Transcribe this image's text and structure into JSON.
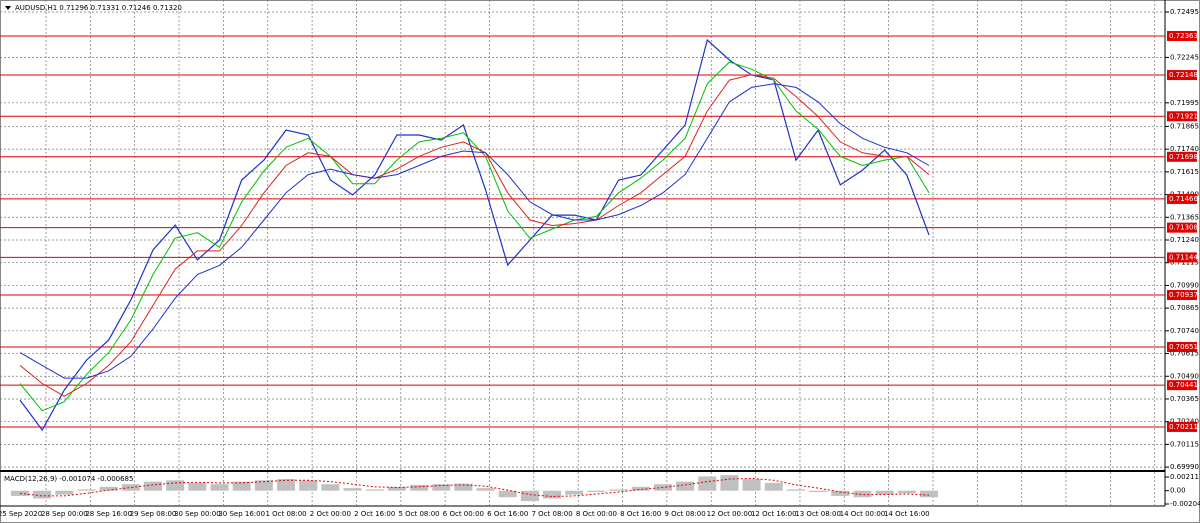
{
  "chart_data": [
    {
      "type": "line",
      "title": "AUDUSD,H1  0.71296 0.71331 0.71246 0.71320",
      "categories": [
        "25 Sep 2020",
        null,
        "28 Sep 00:00",
        null,
        "28 Sep 16:00",
        null,
        "29 Sep 08:00",
        null,
        "30 Sep 00:00",
        null,
        "30 Sep 16:00",
        null,
        "1 Oct 08:00",
        null,
        "2 Oct 00:00",
        null,
        "2 Oct 16:00",
        null,
        "5 Oct 08:00",
        null,
        "6 Oct 00:00",
        null,
        "6 Oct 16:00",
        null,
        "7 Oct 08:00",
        null,
        "8 Oct 00:00",
        null,
        "8 Oct 16:00",
        null,
        "9 Oct 08:00",
        null,
        "12 Oct 00:00",
        null,
        "12 Oct 16:00",
        null,
        "13 Oct 08:00",
        null,
        "14 Oct 00:00",
        null,
        "14 Oct 16:00",
        null
      ],
      "series": [
        {
          "color": "#1e32c8",
          "values": [
            0.70359,
            0.70194,
            0.70414,
            0.70579,
            0.70689,
            0.7091,
            0.71185,
            0.71322,
            0.7113,
            0.7124,
            0.7157,
            0.7168,
            0.71845,
            0.71818,
            0.7157,
            0.71488,
            0.71598,
            0.71818,
            0.71818,
            0.7179,
            0.71873,
            0.71515,
            0.71102,
            0.7124,
            0.71377,
            0.71377,
            0.7135,
            0.7157,
            0.71598,
            0.71735,
            0.71873,
            0.72341,
            0.72231,
            0.72148,
            0.72121,
            0.7168,
            0.71845,
            0.71543,
            0.71625,
            0.71735,
            0.71598,
            0.71267
          ]
        },
        {
          "color": "#00c000",
          "values": [
            0.7045,
            0.703,
            0.7035,
            0.705,
            0.7062,
            0.708,
            0.7105,
            0.7125,
            0.7128,
            0.712,
            0.7145,
            0.7162,
            0.7175,
            0.718,
            0.717,
            0.7155,
            0.7155,
            0.7168,
            0.7178,
            0.718,
            0.7183,
            0.717,
            0.714,
            0.7125,
            0.713,
            0.7135,
            0.7137,
            0.715,
            0.7158,
            0.7168,
            0.718,
            0.721,
            0.7222,
            0.7218,
            0.7212,
            0.7195,
            0.7185,
            0.717,
            0.7165,
            0.7168,
            0.717,
            0.715
          ]
        },
        {
          "color": "#e02020",
          "values": [
            0.7055,
            0.7045,
            0.7038,
            0.7045,
            0.7055,
            0.7068,
            0.7088,
            0.7108,
            0.7118,
            0.7118,
            0.7132,
            0.715,
            0.7165,
            0.7172,
            0.717,
            0.716,
            0.7158,
            0.7163,
            0.717,
            0.7175,
            0.7178,
            0.7172,
            0.715,
            0.7135,
            0.7132,
            0.7133,
            0.7135,
            0.7143,
            0.715,
            0.716,
            0.717,
            0.7195,
            0.7212,
            0.7215,
            0.7213,
            0.7203,
            0.7192,
            0.7178,
            0.7172,
            0.717,
            0.717,
            0.716
          ]
        },
        {
          "color": "#2030d0",
          "values": [
            0.7062,
            0.7055,
            0.7048,
            0.7048,
            0.7052,
            0.706,
            0.7075,
            0.7092,
            0.7105,
            0.711,
            0.712,
            0.7135,
            0.715,
            0.716,
            0.7163,
            0.716,
            0.7158,
            0.716,
            0.7165,
            0.717,
            0.7173,
            0.7172,
            0.716,
            0.7145,
            0.7138,
            0.7135,
            0.7135,
            0.7138,
            0.7143,
            0.715,
            0.716,
            0.718,
            0.72,
            0.7208,
            0.721,
            0.7208,
            0.72,
            0.7188,
            0.718,
            0.7175,
            0.7172,
            0.7165
          ]
        }
      ],
      "levels": [
        0.72363,
        0.72148,
        0.71921,
        0.71698,
        0.71466,
        0.71308,
        0.71144,
        0.70937,
        0.70651,
        0.70441,
        0.70211
      ],
      "levels_color": "#e00000",
      "ylim": [
        0.69974,
        0.72561
      ],
      "yticks": [
        0.72495,
        0.72245,
        0.71995,
        0.71865,
        {
          "value": 0.7174,
          "label": "0.71740"
        },
        0.71615,
        {
          "value": 0.7149,
          "label": "0.71490"
        },
        0.71365,
        {
          "value": 0.7124,
          "label": "0.71240"
        },
        0.71115,
        {
          "value": 0.7099,
          "label": "0.70990"
        },
        0.70865,
        {
          "value": 0.7074,
          "label": "0.70740"
        },
        0.70615,
        {
          "value": 0.7049,
          "label": "0.70490"
        },
        0.70365,
        {
          "value": 0.7024,
          "label": "0.70240"
        },
        0.70115,
        {
          "value": 0.6999,
          "label": "0.69990"
        }
      ],
      "grid": true
    },
    {
      "type": "bar",
      "title": "MACD(12,26,9) -0.001074 -0.000685",
      "series": [
        {
          "color": "#c0c0c0",
          "values": [
            -0.0008,
            -0.0012,
            -0.0006,
            0.0002,
            0.0006,
            0.001,
            0.0014,
            0.0016,
            0.0012,
            0.001,
            0.0014,
            0.0016,
            0.0018,
            0.0016,
            0.001,
            0.0004,
            0.0002,
            0.0006,
            0.0009,
            0.001,
            0.0011,
            0.0004,
            -0.001,
            -0.0016,
            -0.0012,
            -0.0006,
            -0.0002,
            0.0002,
            0.0006,
            0.001,
            0.0014,
            0.0022,
            0.0024,
            0.0018,
            0.0012,
            0.0002,
            -0.0002,
            -0.0008,
            -0.001,
            -0.0006,
            -0.0004,
            -0.001
          ]
        },
        {
          "color": "#e00000",
          "values": [
            -0.0004,
            -0.0008,
            -0.0008,
            -0.0004,
            0.0001,
            0.0005,
            0.0009,
            0.0012,
            0.0013,
            0.0012,
            0.0012,
            0.0014,
            0.0016,
            0.0016,
            0.0014,
            0.001,
            0.0006,
            0.0005,
            0.0006,
            0.0008,
            0.0009,
            0.0007,
            0.0001,
            -0.0006,
            -0.0009,
            -0.0008,
            -0.0005,
            -0.0002,
            0.0002,
            0.0005,
            0.0009,
            0.0014,
            0.0018,
            0.0019,
            0.0016,
            0.0009,
            0.0004,
            -0.0002,
            -0.0006,
            -0.0006,
            -0.0005,
            -0.0007
          ]
        }
      ],
      "ylim": [
        -0.00236,
        0.00258
      ],
      "yticks": [
        0.002117,
        {
          "value": 0,
          "label": "0.00"
        },
        -0.002049
      ]
    }
  ]
}
